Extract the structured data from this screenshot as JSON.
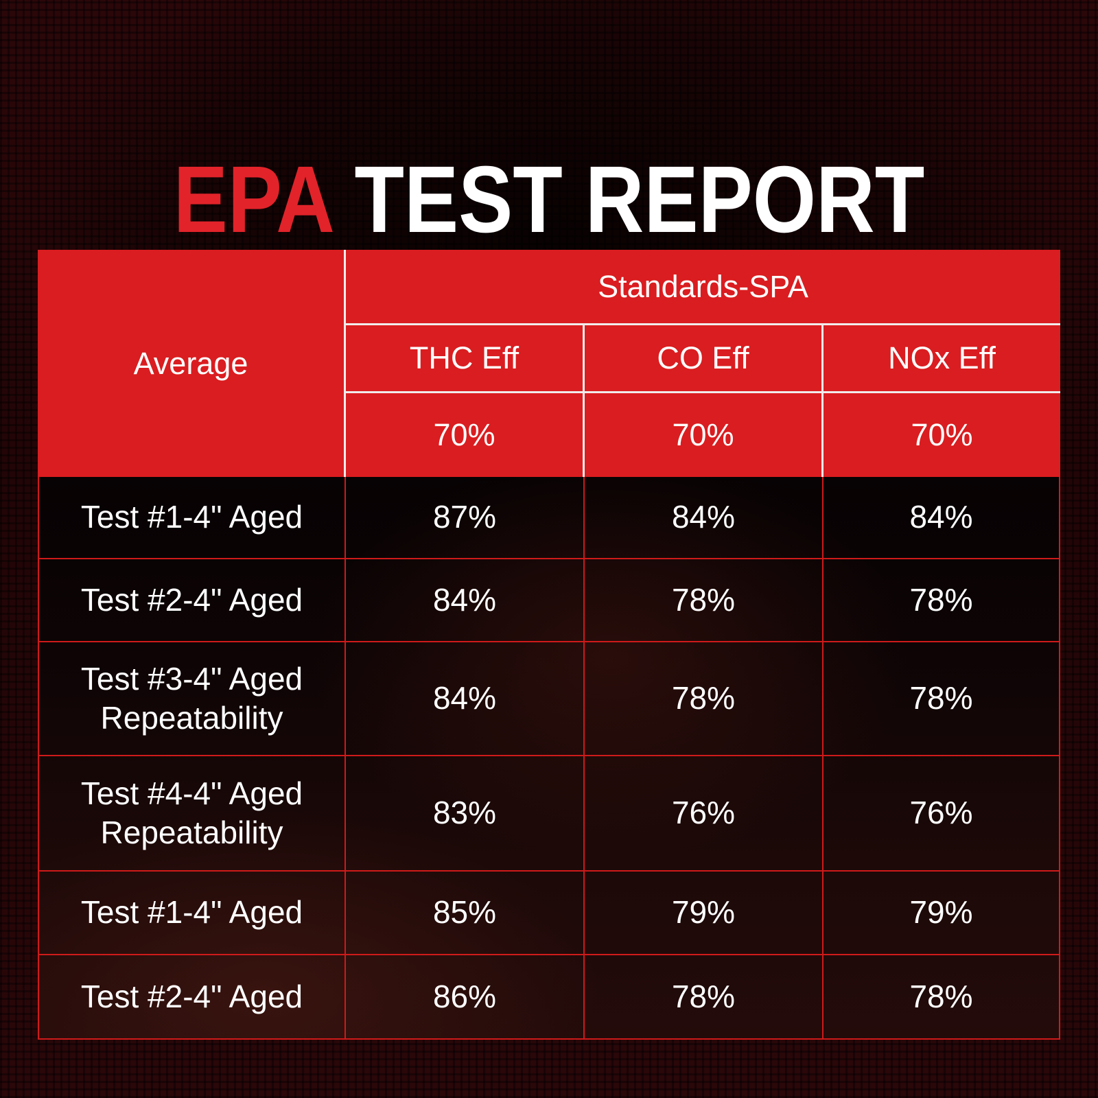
{
  "header": {
    "title_accent": "EPA",
    "title_rest": "TEST REPORT"
  },
  "colors": {
    "title_accent_red": "#e2232a",
    "header_red": "#da1d20",
    "grid_red": "#cf1a1a",
    "header_divider_white": "#f1ecec",
    "text": "#ffffff",
    "background_maroon": "#260608"
  },
  "chart_data": {
    "type": "table",
    "title": "EPA TEST REPORT",
    "row_header": "Average",
    "group_header": "Standards-SPA",
    "columns": [
      "THC Eff",
      "CO Eff",
      "NOx Eff"
    ],
    "standards": [
      "70%",
      "70%",
      "70%"
    ],
    "rows": [
      {
        "label": "Test #1-4\" Aged",
        "values": [
          "87%",
          "84%",
          "84%"
        ]
      },
      {
        "label": "Test #2-4\" Aged",
        "values": [
          "84%",
          "78%",
          "78%"
        ]
      },
      {
        "label": "Test #3-4\" Aged Repeatability",
        "values": [
          "84%",
          "78%",
          "78%"
        ]
      },
      {
        "label": "Test #4-4\" Aged Repeatability",
        "values": [
          "83%",
          "76%",
          "76%"
        ]
      },
      {
        "label": "Test #1-4\" Aged",
        "values": [
          "85%",
          "79%",
          "79%"
        ]
      },
      {
        "label": "Test #2-4\" Aged",
        "values": [
          "86%",
          "78%",
          "78%"
        ]
      }
    ]
  }
}
